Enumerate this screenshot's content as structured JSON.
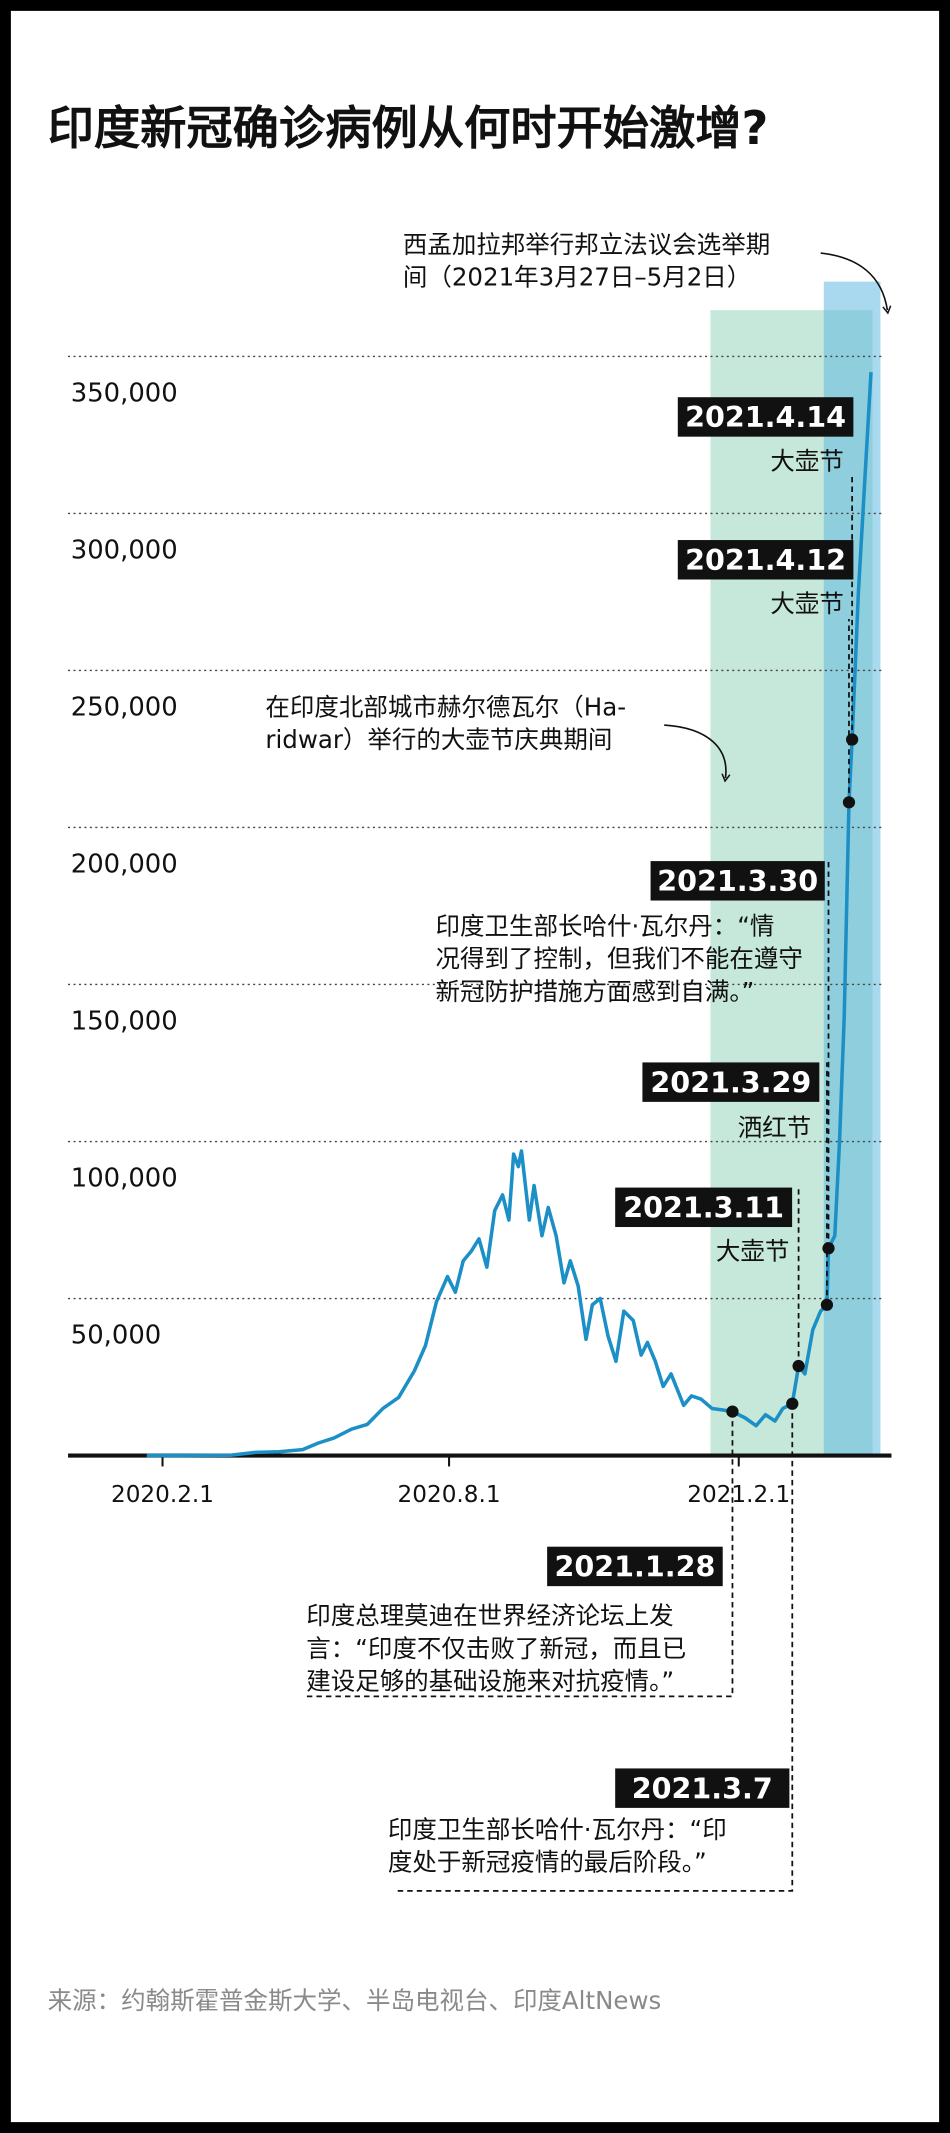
{
  "chart_data": {
    "type": "line",
    "title": "印度新冠确诊病例从何时开始激增?",
    "source": "来源：约翰斯霍普金斯大学、半岛电视台、印度AltNews",
    "color": "#1b8fc6",
    "grid": true,
    "xlim": [
      "2019-12-03",
      "2021-05-09"
    ],
    "xticks": [
      {
        "value": "2020-02-01",
        "label": "2020.2.1"
      },
      {
        "value": "2020-08-01",
        "label": "2020.8.1"
      },
      {
        "value": "2021-02-01",
        "label": "2021.2.1"
      }
    ],
    "ylim": [
      0,
      350000
    ],
    "yticks": [
      {
        "value": 50000,
        "label": "50,000"
      },
      {
        "value": 100000,
        "label": "100,000"
      },
      {
        "value": 150000,
        "label": "150,000"
      },
      {
        "value": 200000,
        "label": "200,000"
      },
      {
        "value": 250000,
        "label": "250,000"
      },
      {
        "value": 300000,
        "label": "300,000"
      },
      {
        "value": 350000,
        "label": "350,000"
      }
    ],
    "x": [
      "2020-01-22",
      "2020-02-15",
      "2020-03-15",
      "2020-03-31",
      "2020-04-15",
      "2020-04-30",
      "2020-05-10",
      "2020-05-20",
      "2020-05-31",
      "2020-06-10",
      "2020-06-20",
      "2020-06-30",
      "2020-07-10",
      "2020-07-17",
      "2020-07-24",
      "2020-07-31",
      "2020-08-05",
      "2020-08-10",
      "2020-08-15",
      "2020-08-20",
      "2020-08-25",
      "2020-08-30",
      "2020-09-04",
      "2020-09-08",
      "2020-09-11",
      "2020-09-14",
      "2020-09-16",
      "2020-09-21",
      "2020-09-24",
      "2020-09-29",
      "2020-10-03",
      "2020-10-08",
      "2020-10-13",
      "2020-10-17",
      "2020-10-22",
      "2020-10-27",
      "2020-10-31",
      "2020-11-05",
      "2020-11-10",
      "2020-11-15",
      "2020-11-20",
      "2020-11-26",
      "2020-12-01",
      "2020-12-05",
      "2020-12-10",
      "2020-12-15",
      "2020-12-20",
      "2020-12-28",
      "2021-01-02",
      "2021-01-08",
      "2021-01-15",
      "2021-01-22",
      "2021-01-28",
      "2021-02-05",
      "2021-02-12",
      "2021-02-18",
      "2021-02-24",
      "2021-03-01",
      "2021-03-07",
      "2021-03-11",
      "2021-03-15",
      "2021-03-20",
      "2021-03-25",
      "2021-03-29",
      "2021-03-30",
      "2021-04-03",
      "2021-04-06",
      "2021-04-09",
      "2021-04-12",
      "2021-04-14",
      "2021-04-18",
      "2021-04-22",
      "2021-04-26"
    ],
    "values": [
      0,
      0,
      100,
      1000,
      1200,
      1900,
      4000,
      5600,
      8400,
      9900,
      15000,
      18500,
      27000,
      35000,
      49000,
      57000,
      52000,
      62000,
      65000,
      69000,
      60000,
      78000,
      83000,
      75000,
      96000,
      92000,
      97000,
      75000,
      86000,
      70000,
      79000,
      70000,
      55000,
      62000,
      54000,
      37000,
      48000,
      50000,
      38000,
      30000,
      46000,
      43000,
      32000,
      36000,
      30000,
      22000,
      26000,
      16000,
      19000,
      18000,
      15000,
      14500,
      14000,
      12000,
      9500,
      13000,
      11000,
      15000,
      16500,
      28500,
      26000,
      40000,
      46000,
      48000,
      66000,
      70000,
      100000,
      140000,
      208000,
      228000,
      275000,
      310000,
      345000
    ],
    "spans": [
      {
        "start": "2021-01-14",
        "end": "2021-04-27",
        "color": "#c6e8da",
        "text": [
          "在印度北部城市赫尔德瓦尔（Ha-",
          "ridwar）举行的大壶节庆典期间"
        ]
      },
      {
        "start": "2021-03-27",
        "end": "2021-05-02",
        "color": "#62b9e0",
        "text": [
          "西孟加拉邦举行邦立法议会选举期",
          "间（2021年3月27日–5月2日）"
        ]
      }
    ],
    "annotations": [
      {
        "date": "2021-01-28",
        "value": 14000,
        "label": "2021.1.28",
        "text": [
          "印度总理莫迪在世界经济论坛上发",
          "言：“印度不仅击败了新冠，而且已",
          "建设足够的基础设施来对抗疫情。”"
        ]
      },
      {
        "date": "2021-03-07",
        "value": 16500,
        "label": "2021.3.7",
        "text": [
          "印度卫生部长哈什·瓦尔丹：“印",
          "度处于新冠疫情的最后阶段。”"
        ]
      },
      {
        "date": "2021-03-11",
        "value": 28500,
        "label": "2021.3.11",
        "text": [
          "大壶节"
        ]
      },
      {
        "date": "2021-03-29",
        "value": 48000,
        "label": "2021.3.29",
        "text": [
          "洒红节"
        ]
      },
      {
        "date": "2021-03-30",
        "value": 66000,
        "label": "2021.3.30",
        "text": [
          "印度卫生部长哈什·瓦尔丹：“情",
          "况得到了控制，但我们不能在遵守",
          "新冠防护措施方面感到自满。”"
        ]
      },
      {
        "date": "2021-04-12",
        "value": 208000,
        "label": "2021.4.12",
        "text": [
          "大壶节"
        ]
      },
      {
        "date": "2021-04-14",
        "value": 228000,
        "label": "2021.4.14",
        "text": [
          "大壶节"
        ]
      }
    ]
  }
}
